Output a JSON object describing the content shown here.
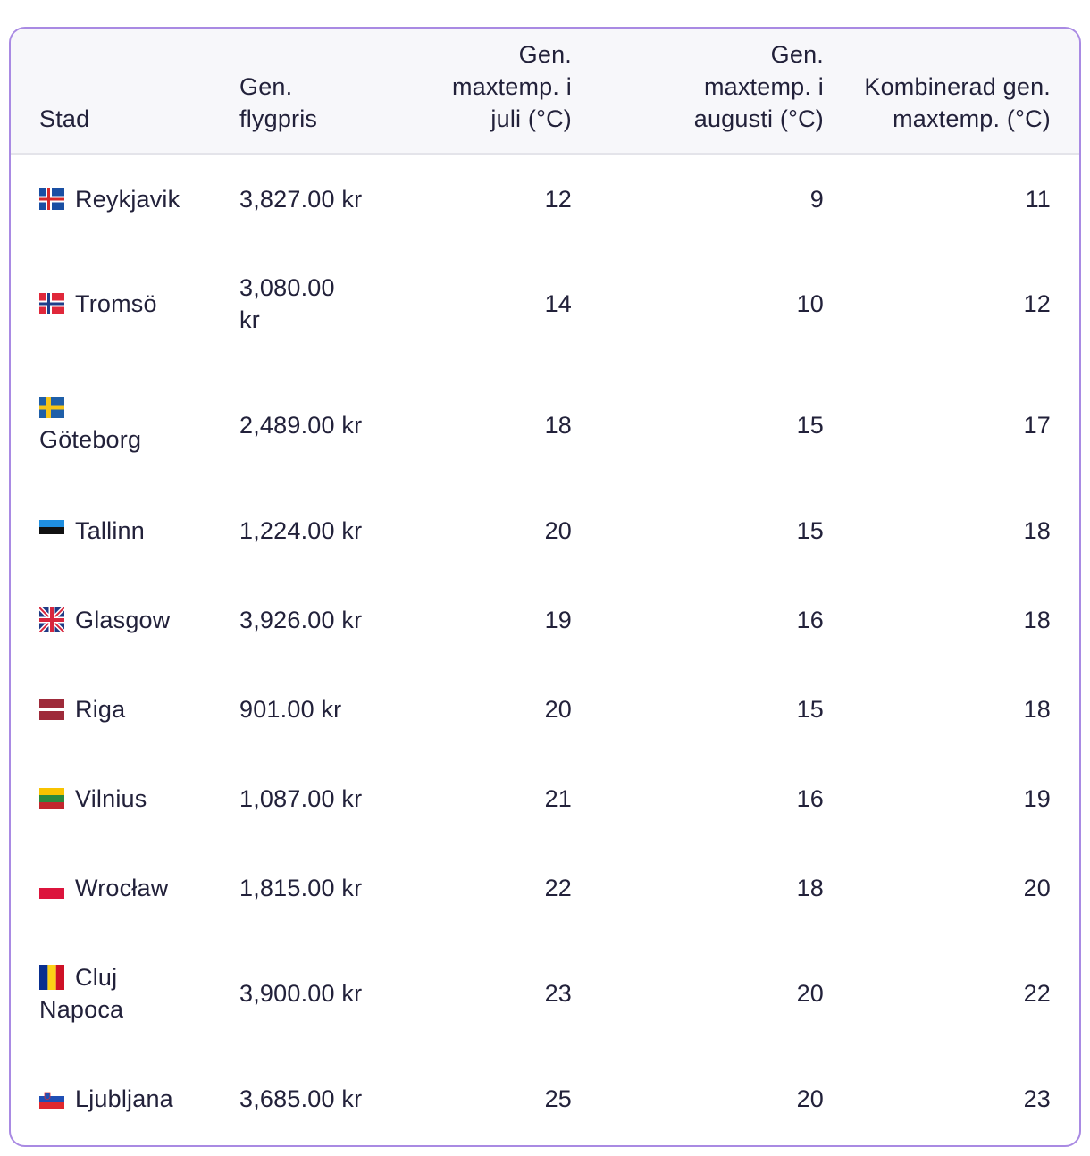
{
  "table": {
    "headers": {
      "city": "Stad",
      "price": "Gen. flygpris",
      "july": "Gen. maxtemp. i juli (°C)",
      "august": "Gen. maxtemp. i augusti (°C)",
      "combined": "Kombinerad gen. maxtemp. (°C)"
    },
    "rows": [
      {
        "flag": "iceland-flag-icon",
        "city": "Reykjavik",
        "price": "3,827.00 kr",
        "july": "12",
        "august": "9",
        "combined": "11"
      },
      {
        "flag": "norway-flag-icon",
        "city": "Tromsö",
        "price": "3,080.00 kr",
        "july": "14",
        "august": "10",
        "combined": "12"
      },
      {
        "flag": "sweden-flag-icon",
        "city": "Göteborg",
        "price": "2,489.00 kr",
        "july": "18",
        "august": "15",
        "combined": "17"
      },
      {
        "flag": "estonia-flag-icon",
        "city": "Tallinn",
        "price": "1,224.00 kr",
        "july": "20",
        "august": "15",
        "combined": "18"
      },
      {
        "flag": "uk-flag-icon",
        "city": "Glasgow",
        "price": "3,926.00 kr",
        "july": "19",
        "august": "16",
        "combined": "18"
      },
      {
        "flag": "latvia-flag-icon",
        "city": "Riga",
        "price": "901.00 kr",
        "july": "20",
        "august": "15",
        "combined": "18"
      },
      {
        "flag": "lithuania-flag-icon",
        "city": "Vilnius",
        "price": "1,087.00 kr",
        "july": "21",
        "august": "16",
        "combined": "19"
      },
      {
        "flag": "poland-flag-icon",
        "city": "Wrocław",
        "price": "1,815.00 kr",
        "july": "22",
        "august": "18",
        "combined": "20"
      },
      {
        "flag": "romania-flag-icon",
        "city": "Cluj Napoca",
        "price": "3,900.00 kr",
        "july": "23",
        "august": "20",
        "combined": "22"
      },
      {
        "flag": "slovenia-flag-icon",
        "city": "Ljubljana",
        "price": "3,685.00 kr",
        "july": "25",
        "august": "20",
        "combined": "23"
      }
    ]
  }
}
